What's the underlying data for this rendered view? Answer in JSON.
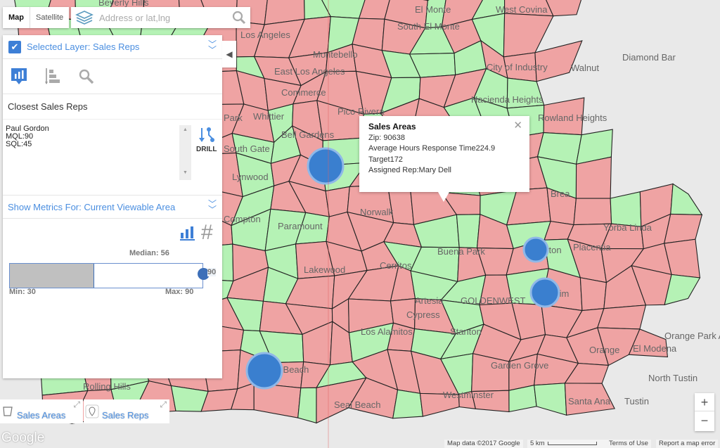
{
  "map": {
    "colors": {
      "red": "#efa3a3",
      "green": "#b5f2b5",
      "border": "#222",
      "marker": "#3a7fcf",
      "bg": "#e9e9e9"
    },
    "place_labels": [
      "Beverly Hills",
      "Los Angeles",
      "El Monte",
      "West Covina",
      "South El Monte",
      "East Los Angeles",
      "Montebello",
      "Commerce",
      "Pico Rivera",
      "Bell Gardens",
      "South Gate",
      "Lynwood",
      "Compton",
      "Paramount",
      "Norwalk",
      "Cerritos",
      "Lakewood",
      "Buena Park",
      "Cypress",
      "Los Alamitos",
      "Stanton",
      "Garden Grove",
      "Westminster",
      "Seal Beach",
      "Santa Ana",
      "Tustin",
      "Orange",
      "El Modena",
      "Orange Park Acres",
      "North Tustin",
      "Anaheim",
      "Fullerton",
      "Placentia",
      "Yorba Linda",
      "Brea",
      "Rowland Heights",
      "Hacienda Heights",
      "City of Industry",
      "Walnut",
      "Diamond Bar",
      "Rolling Hills",
      "Long Beach",
      "Whittier",
      "Park",
      "Artesia",
      "GOLDENWEST"
    ]
  },
  "map_type": {
    "map": "Map",
    "satellite": "Satellite"
  },
  "search": {
    "placeholder": "Address or lat,lng"
  },
  "panel": {
    "selected_layer": "Selected Layer: Sales Reps",
    "closest_title": "Closest Sales Reps",
    "rep": {
      "name": "Paul Gordon",
      "mql": "MQL:90",
      "sql": "SQL:45"
    },
    "drill": "DRILL",
    "metrics_for": "Show Metrics For: Current Viewable Area",
    "median_label": "Median: 56",
    "min_label": "Min: 30",
    "max_label": "Max: 90",
    "slider_value": "90",
    "range": {
      "min": 30,
      "max": 90,
      "median": 56,
      "value": 90
    }
  },
  "popup": {
    "title": "Sales Areas",
    "zip": "Zip: 90638",
    "avg": "Average Hours Response Time224.9",
    "target": "Target172",
    "rep": "Assigned Rep:Mary Dell"
  },
  "layers": [
    {
      "label": "Sales Areas",
      "icon": "polygon-icon"
    },
    {
      "label": "Sales Reps",
      "icon": "map-pin-icon"
    }
  ],
  "zoom": {
    "plus": "+",
    "minus": "−"
  },
  "attribution": {
    "google": "Google",
    "data": "Map data ©2017 Google",
    "scale": "5 km",
    "terms": "Terms of Use",
    "report": "Report a map error"
  }
}
